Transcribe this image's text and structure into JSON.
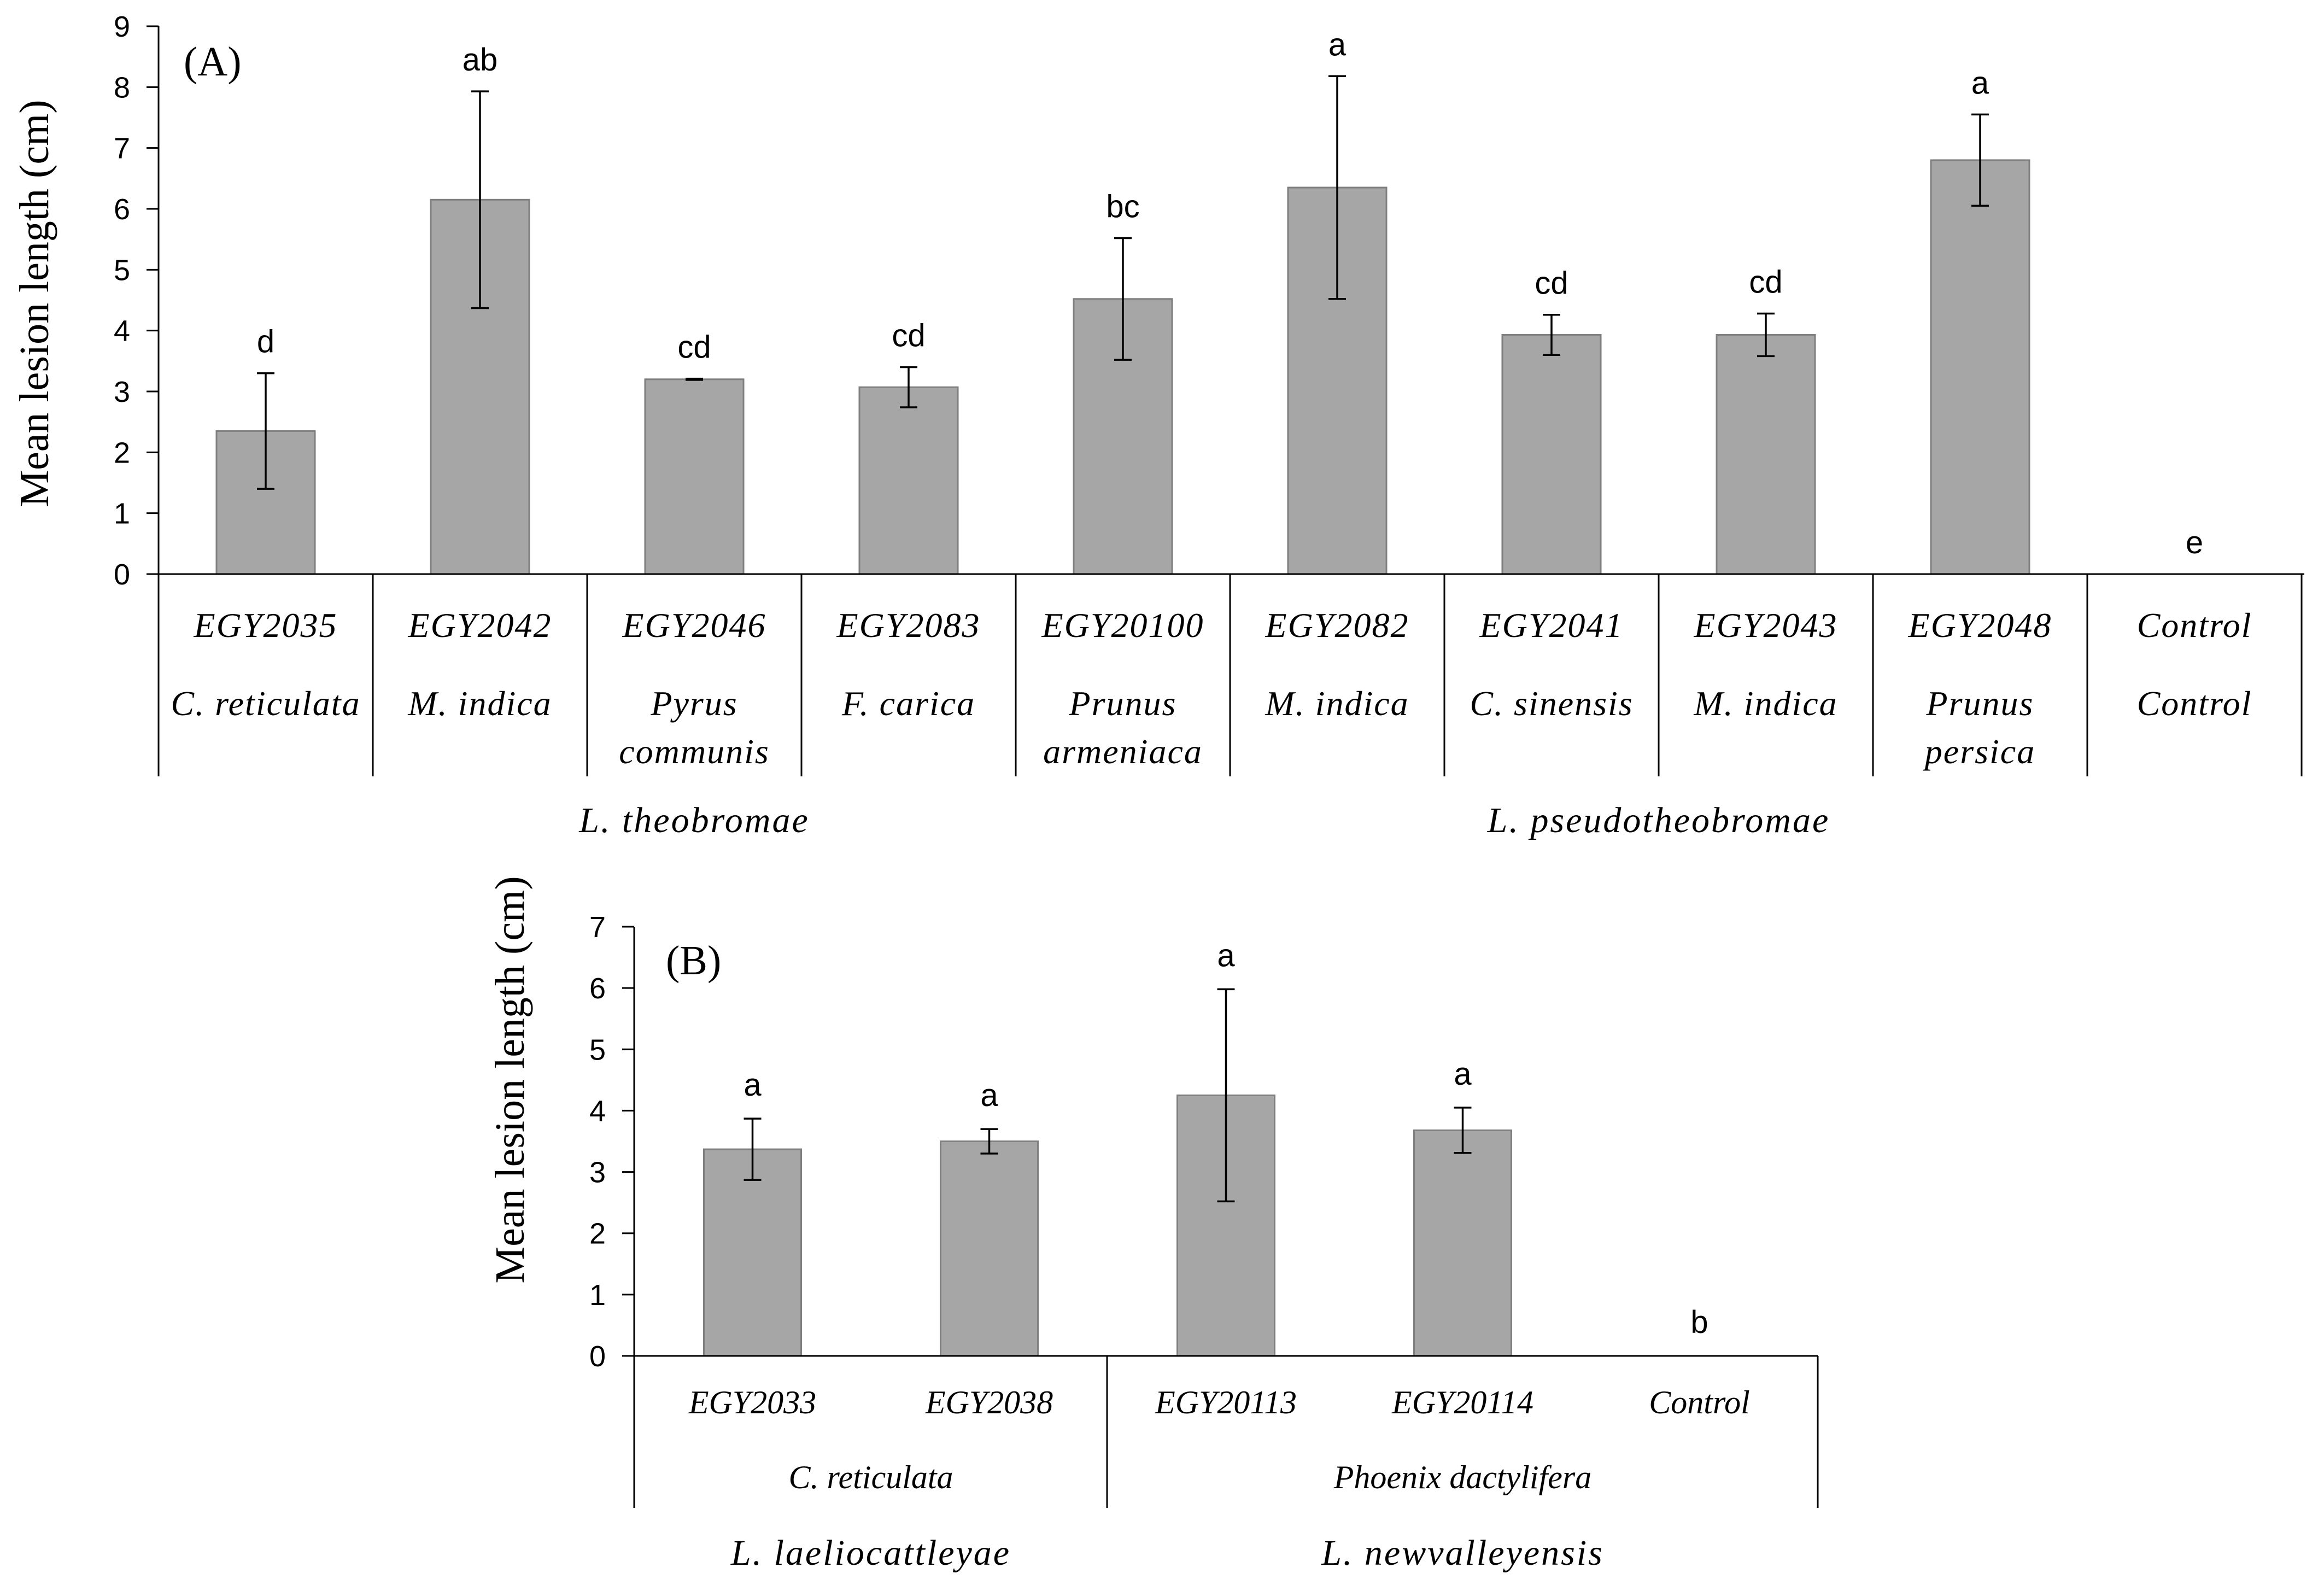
{
  "chart_data": [
    {
      "type": "bar",
      "panel_label": "(A)",
      "ylabel": "Mean lesion length (cm)",
      "ylim": [
        0,
        9
      ],
      "yticks": [
        "0",
        "1",
        "2",
        "3",
        "4",
        "5",
        "6",
        "7",
        "8",
        "9"
      ],
      "categories": [
        "EGY2035",
        "EGY2042",
        "EGY2046",
        "EGY2083",
        "EGY20100",
        "EGY2082",
        "EGY2041",
        "EGY2043",
        "EGY2048",
        "Control"
      ],
      "hosts": [
        [
          "C. reticulata"
        ],
        [
          "M. indica"
        ],
        [
          "Pyrus",
          "communis"
        ],
        [
          "F. carica"
        ],
        [
          "Prunus",
          "armeniaca"
        ],
        [
          "M. indica"
        ],
        [
          "C. sinensis"
        ],
        [
          "M. indica"
        ],
        [
          "Prunus",
          "persica"
        ],
        [
          "Control"
        ]
      ],
      "values": [
        2.35,
        6.15,
        3.2,
        3.07,
        4.52,
        6.35,
        3.93,
        3.93,
        6.8,
        0
      ],
      "errors": [
        0.95,
        1.78,
        0.01,
        0.33,
        1.0,
        1.83,
        0.33,
        0.35,
        0.75,
        0
      ],
      "significance": [
        "d",
        "ab",
        "cd",
        "cd",
        "bc",
        "a",
        "cd",
        "cd",
        "a",
        "e"
      ],
      "groups": [
        {
          "name": "L. theobromae",
          "start": 0,
          "end": 4
        },
        {
          "name": "L. pseudotheobromae",
          "start": 5,
          "end": 8
        }
      ]
    },
    {
      "type": "bar",
      "panel_label": "(B)",
      "ylabel": "Mean lesion length (cm)",
      "ylim": [
        0,
        7
      ],
      "yticks": [
        "0",
        "1",
        "2",
        "3",
        "4",
        "5",
        "6",
        "7"
      ],
      "categories": [
        "EGY2033",
        "EGY2038",
        "EGY20113",
        "EGY20114",
        "Control"
      ],
      "values": [
        3.37,
        3.5,
        4.25,
        3.68,
        0
      ],
      "errors": [
        0.5,
        0.2,
        1.73,
        0.37,
        0
      ],
      "significance": [
        "a",
        "a",
        "a",
        "a",
        "b"
      ],
      "hosts": [
        {
          "name": "C. reticulata",
          "start": 0,
          "end": 1
        },
        {
          "name": "Phoenix dactylifera",
          "start": 2,
          "end": 4
        }
      ],
      "groups": [
        {
          "name": "L. laeliocattleyae",
          "start": 0,
          "end": 1
        },
        {
          "name": "L. newvalleyensis",
          "start": 2,
          "end": 4
        }
      ]
    }
  ]
}
